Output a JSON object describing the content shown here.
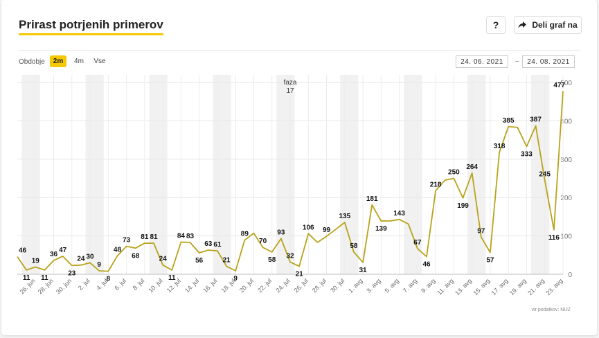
{
  "header": {
    "title": "Prirast potrjenih primerov",
    "help_label": "?",
    "share_label": "Deli graf na"
  },
  "period": {
    "label": "Obdobje",
    "options": [
      "2m",
      "4m",
      "Vse"
    ],
    "active": "2m",
    "date_from": "24. 06. 2021",
    "date_separator": "–",
    "date_to": "24. 08. 2021"
  },
  "source": "vir podatkov: NIJZ",
  "chart_data": {
    "type": "line",
    "title": "Prirast potrjenih primerov",
    "xlabel": "",
    "ylabel": "",
    "ylim": [
      0,
      520
    ],
    "yticks": [
      0,
      100,
      200,
      300,
      400,
      500
    ],
    "grid": true,
    "color": "#b8a219",
    "x_start": "2021-06-24",
    "values": [
      46,
      11,
      19,
      11,
      36,
      47,
      23,
      24,
      30,
      9,
      8,
      48,
      73,
      68,
      81,
      81,
      24,
      11,
      84,
      83,
      56,
      63,
      61,
      21,
      9,
      89,
      107,
      70,
      58,
      93,
      32,
      21,
      106,
      83,
      99,
      117,
      135,
      58,
      31,
      181,
      139,
      139,
      143,
      131,
      67,
      46,
      218,
      245,
      250,
      199,
      264,
      97,
      57,
      318,
      385,
      383,
      333,
      387,
      245,
      116,
      477
    ],
    "point_labels": [
      {
        "i": 0,
        "v": 46
      },
      {
        "i": 1,
        "v": 11
      },
      {
        "i": 2,
        "v": 19
      },
      {
        "i": 3,
        "v": 11
      },
      {
        "i": 4,
        "v": 36
      },
      {
        "i": 5,
        "v": 47
      },
      {
        "i": 6,
        "v": 23
      },
      {
        "i": 7,
        "v": 24
      },
      {
        "i": 8,
        "v": 30
      },
      {
        "i": 9,
        "v": 9
      },
      {
        "i": 10,
        "v": 8
      },
      {
        "i": 11,
        "v": 48
      },
      {
        "i": 12,
        "v": 73
      },
      {
        "i": 13,
        "v": 68
      },
      {
        "i": 14,
        "v": 81
      },
      {
        "i": 15,
        "v": 81
      },
      {
        "i": 16,
        "v": 24
      },
      {
        "i": 17,
        "v": 11
      },
      {
        "i": 18,
        "v": 84
      },
      {
        "i": 19,
        "v": 83
      },
      {
        "i": 20,
        "v": 56
      },
      {
        "i": 21,
        "v": 63
      },
      {
        "i": 22,
        "v": 61
      },
      {
        "i": 23,
        "v": 21
      },
      {
        "i": 24,
        "v": 9
      },
      {
        "i": 25,
        "v": 89
      },
      {
        "i": 27,
        "v": 70
      },
      {
        "i": 28,
        "v": 58
      },
      {
        "i": 29,
        "v": 93
      },
      {
        "i": 30,
        "v": 32
      },
      {
        "i": 31,
        "v": 21
      },
      {
        "i": 32,
        "v": 106
      },
      {
        "i": 34,
        "v": 99
      },
      {
        "i": 36,
        "v": 135
      },
      {
        "i": 37,
        "v": 58
      },
      {
        "i": 38,
        "v": 31
      },
      {
        "i": 39,
        "v": 181
      },
      {
        "i": 40,
        "v": 139
      },
      {
        "i": 42,
        "v": 143
      },
      {
        "i": 44,
        "v": 67
      },
      {
        "i": 45,
        "v": 46
      },
      {
        "i": 46,
        "v": 218
      },
      {
        "i": 48,
        "v": 250
      },
      {
        "i": 49,
        "v": 199
      },
      {
        "i": 50,
        "v": 264
      },
      {
        "i": 51,
        "v": 97
      },
      {
        "i": 52,
        "v": 57
      },
      {
        "i": 53,
        "v": 318
      },
      {
        "i": 54,
        "v": 385
      },
      {
        "i": 56,
        "v": 333
      },
      {
        "i": 57,
        "v": 387
      },
      {
        "i": 58,
        "v": 245
      },
      {
        "i": 59,
        "v": 116
      },
      {
        "i": 60,
        "v": 477
      }
    ],
    "x_tick_labels": [
      {
        "i": 2,
        "label": "26. jun"
      },
      {
        "i": 4,
        "label": "28. jun"
      },
      {
        "i": 6,
        "label": "30. jun"
      },
      {
        "i": 8,
        "label": "2. jul"
      },
      {
        "i": 10,
        "label": "4. jul"
      },
      {
        "i": 12,
        "label": "6. jul"
      },
      {
        "i": 14,
        "label": "8. jul"
      },
      {
        "i": 16,
        "label": "10. jul"
      },
      {
        "i": 18,
        "label": "12. jul"
      },
      {
        "i": 20,
        "label": "14. jul"
      },
      {
        "i": 22,
        "label": "16. jul"
      },
      {
        "i": 24,
        "label": "18. jul"
      },
      {
        "i": 26,
        "label": "20. jul"
      },
      {
        "i": 28,
        "label": "22. jul"
      },
      {
        "i": 30,
        "label": "24. jul"
      },
      {
        "i": 32,
        "label": "26. jul"
      },
      {
        "i": 34,
        "label": "28. jul"
      },
      {
        "i": 36,
        "label": "30. jul"
      },
      {
        "i": 38,
        "label": "1. avg"
      },
      {
        "i": 40,
        "label": "3. avg"
      },
      {
        "i": 42,
        "label": "5. avg"
      },
      {
        "i": 44,
        "label": "7. avg"
      },
      {
        "i": 46,
        "label": "9. avg"
      },
      {
        "i": 48,
        "label": "11. avg"
      },
      {
        "i": 50,
        "label": "13. avg"
      },
      {
        "i": 52,
        "label": "15. avg"
      },
      {
        "i": 54,
        "label": "17. avg"
      },
      {
        "i": 56,
        "label": "19. avg"
      },
      {
        "i": 58,
        "label": "21. avg"
      },
      {
        "i": 60,
        "label": "23. avg"
      }
    ],
    "weekend_bands": [
      [
        1,
        2
      ],
      [
        8,
        9
      ],
      [
        15,
        16
      ],
      [
        22,
        23
      ],
      [
        29,
        30
      ],
      [
        36,
        37
      ],
      [
        43,
        44
      ],
      [
        50,
        51
      ],
      [
        57,
        58
      ]
    ],
    "annotations": [
      {
        "i": 30,
        "lines": [
          "faza",
          "17"
        ]
      }
    ]
  }
}
